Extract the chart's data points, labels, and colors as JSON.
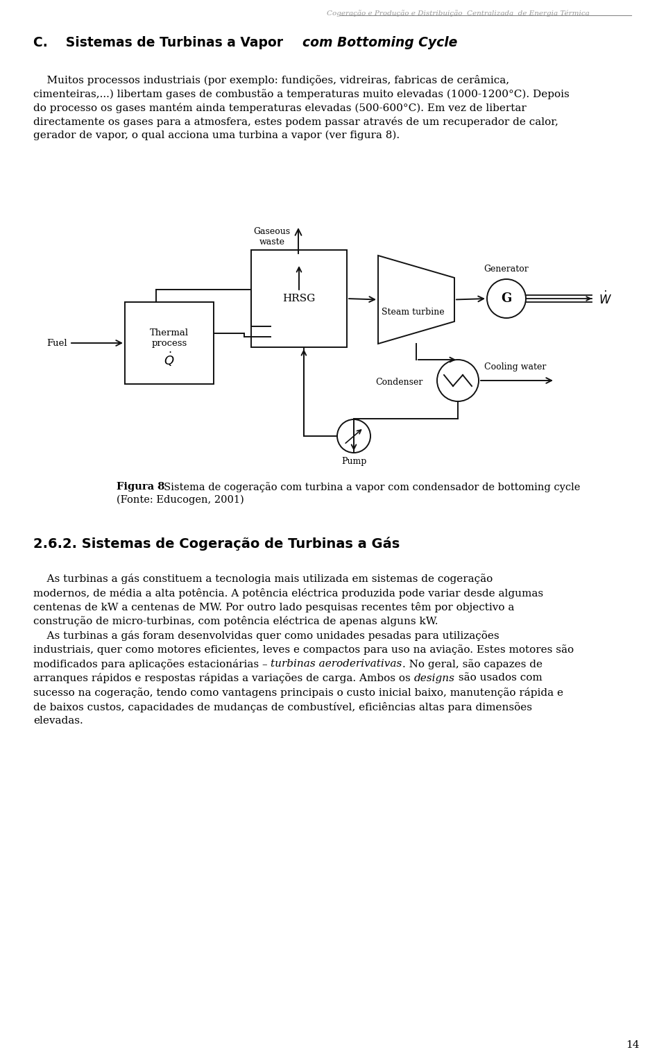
{
  "bg_color": "#ffffff",
  "header_text": "Cogeração e Produção e Distribuição  Centralizada  de Energia Térmica",
  "header_color": "#999999",
  "page_number": "14",
  "line_color": "#555555",
  "text_color": "#111111",
  "diagram_color": "#111111",
  "section_c_normal": "C.    Sistemas de Turbinas a Vapor ",
  "section_c_italic": "com Bottoming Cycle",
  "para1_indent": "    Muitos processos industriais (por exemplo: fundições, vidreiras, fabricas de cerâmica,",
  "para1_lines": [
    "    Muitos processos industriais (por exemplo: fundições, vidreiras, fabricas de cerâmica,",
    "cimenteiras,...) libertam gases de combustão a temperaturas muito elevadas (1000-1200°C). Depois",
    "do processo os gases mantém ainda temperaturas elevadas (500-600°C). Em vez de libertar",
    "directamente os gases para a atmosfera, estes podem passar através de um recuperador de calor,",
    "gerador de vapor, o qual acciona uma turbina a vapor (ver figura 8)."
  ],
  "fig_bold": "Figura 8",
  "fig_rest": " - Sistema de cogeração com turbina a vapor com condensador de bottoming cycle",
  "fig_source": "(Fonte: Educogen, 2001)",
  "sec2_title": "2.6.2. Sistemas de Cogeração de Turbinas a Gás",
  "para2_lines": [
    "    As turbinas a gás constituem a tecnologia mais utilizada em sistemas de cogeração",
    "modernos, de média a alta potência. A potência eléctrica produzida pode variar desde algumas",
    "centenas de kW a centenas de MW. Por outro lado pesquisas recentes têm por objectivo a",
    "construção de micro-turbinas, com potência eléctrica de apenas alguns kW.",
    "    As turbinas a gás foram desenvolvidas quer como unidades pesadas para utilizações",
    "industriais, quer como motores eficientes, leves e compactos para uso na aviação. Estes motores são",
    "modificados para aplicações estacionárias – [IT]turbinas aeroderivativas[/IT]. No geral, são capazes de",
    "arranques rápidos e respostas rápidas a variações de carga. Ambos os [IT]designs[/IT] são usados com",
    "sucesso na cogeração, tendo como vantagens principais o custo inicial baixo, manutenção rápida e",
    "de baixos custos, capacidades de mudanças de combustível, eficiências altas para dimensões",
    "elevadas."
  ]
}
